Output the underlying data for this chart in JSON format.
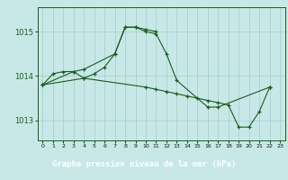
{
  "title": "Graphe pression niveau de la mer (hPa)",
  "bg_color": "#c8e8e8",
  "grid_color": "#a8d0d0",
  "line_color": "#1a5c1a",
  "bottom_bar_color": "#2d6b2d",
  "bottom_text_color": "#ffffff",
  "ylim": [
    1012.55,
    1015.55
  ],
  "yticks": [
    1013,
    1014,
    1015
  ],
  "xticks": [
    0,
    1,
    2,
    3,
    4,
    5,
    6,
    7,
    8,
    9,
    10,
    11,
    12,
    13,
    14,
    15,
    16,
    17,
    18,
    19,
    20,
    21,
    22,
    23
  ],
  "line1_x": [
    0,
    1,
    2,
    3,
    4,
    5,
    6,
    7,
    8,
    9,
    10,
    11
  ],
  "line1_y": [
    1013.8,
    1014.05,
    1014.1,
    1014.1,
    1013.95,
    1014.05,
    1014.2,
    1014.5,
    1015.1,
    1015.1,
    1015.05,
    1015.0
  ],
  "line2_x": [
    0,
    3,
    4,
    7,
    8,
    9,
    10,
    11,
    12,
    13,
    16,
    17,
    22
  ],
  "line2_y": [
    1013.8,
    1014.1,
    1014.15,
    1014.5,
    1015.1,
    1015.1,
    1015.0,
    1014.95,
    1014.5,
    1013.9,
    1013.3,
    1013.3,
    1013.75
  ],
  "line3_x": [
    0,
    4,
    10,
    11,
    12,
    13,
    14,
    15,
    16,
    17,
    18,
    19,
    20,
    21,
    22
  ],
  "line3_y": [
    1013.8,
    1013.95,
    1013.75,
    1013.7,
    1013.65,
    1013.6,
    1013.55,
    1013.5,
    1013.45,
    1013.4,
    1013.35,
    1012.85,
    1012.85,
    1013.2,
    1013.75
  ]
}
